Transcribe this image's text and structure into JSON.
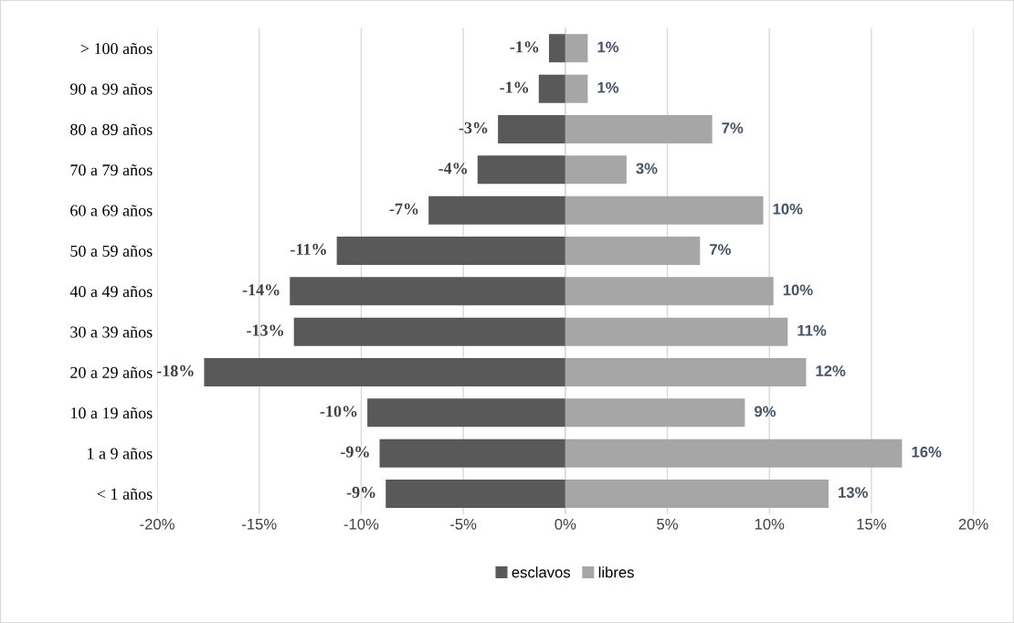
{
  "chart_data": {
    "type": "bar",
    "orientation": "horizontal",
    "stacked": true,
    "categories": [
      "> 100 años",
      "90 a 99 años",
      "80 a 89 años",
      "70 a 79 años",
      "60 a 69 años",
      "50 a 59 años",
      "40 a 49 años",
      "30 a 39 años",
      "20 a 29 años",
      "10 a 19 años",
      "1 a 9 años",
      "< 1 años"
    ],
    "series": [
      {
        "name": "esclavos",
        "color": "#595959",
        "values": [
          -0.8,
          -1.3,
          -3.3,
          -4.3,
          -6.7,
          -11.2,
          -13.5,
          -13.3,
          -17.7,
          -9.7,
          -9.1,
          -8.8
        ],
        "value_labels": [
          "-1%",
          "-1%",
          "-3%",
          "-4%",
          "-7%",
          "-11%",
          "-14%",
          "-13%",
          "-18%",
          "-10%",
          "-9%",
          "-9%"
        ]
      },
      {
        "name": "libres",
        "color": "#a6a6a6",
        "values": [
          1.1,
          1.1,
          7.2,
          3.0,
          9.7,
          6.6,
          10.2,
          10.9,
          11.8,
          8.8,
          16.5,
          12.9
        ],
        "value_labels": [
          "1%",
          "1%",
          "7%",
          "3%",
          "10%",
          "7%",
          "10%",
          "11%",
          "12%",
          "9%",
          "16%",
          "13%"
        ]
      }
    ],
    "xlim": [
      -20,
      20
    ],
    "xticks": [
      {
        "value": -20,
        "label": "-20%"
      },
      {
        "value": -15,
        "label": "-15%"
      },
      {
        "value": -10,
        "label": "-10%"
      },
      {
        "value": -5,
        "label": "-5%"
      },
      {
        "value": 0,
        "label": "0%"
      },
      {
        "value": 5,
        "label": "5%"
      },
      {
        "value": 10,
        "label": "10%"
      },
      {
        "value": 15,
        "label": "15%"
      },
      {
        "value": 20,
        "label": "20%"
      }
    ],
    "grid": "x",
    "legend": "bottom"
  }
}
